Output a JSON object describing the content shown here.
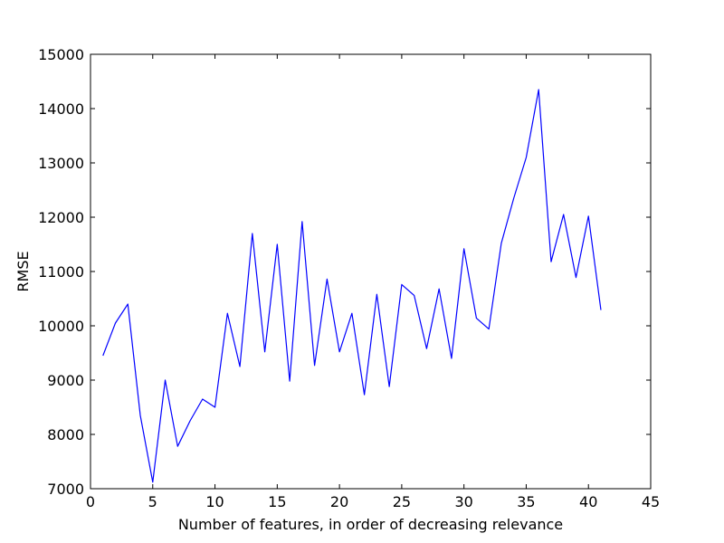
{
  "chart_data": {
    "type": "line",
    "title": "",
    "xlabel": "Number of features, in order of decreasing relevance",
    "ylabel": "RMSE",
    "xlim": [
      0,
      45
    ],
    "ylim": [
      7000,
      15000
    ],
    "xticks": [
      0,
      5,
      10,
      15,
      20,
      25,
      30,
      35,
      40,
      45
    ],
    "yticks": [
      7000,
      8000,
      9000,
      10000,
      11000,
      12000,
      13000,
      14000,
      15000
    ],
    "grid": false,
    "line_color": "#0000ff",
    "series": [
      {
        "x": [
          1,
          2,
          3,
          4,
          5,
          6,
          7,
          8,
          9,
          10,
          11,
          12,
          13,
          14,
          15,
          16,
          17,
          18,
          19,
          20,
          21,
          22,
          23,
          24,
          25,
          26,
          27,
          28,
          29,
          30,
          31,
          32,
          33,
          34,
          35,
          36,
          37,
          38,
          39,
          40,
          41
        ],
        "values": [
          9450,
          10050,
          10400,
          8350,
          7120,
          9000,
          7780,
          8250,
          8650,
          8500,
          10230,
          9250,
          11700,
          9520,
          11500,
          8980,
          11920,
          9270,
          10860,
          9520,
          10230,
          8730,
          10580,
          8880,
          10760,
          10560,
          9580,
          10680,
          9400,
          11420,
          10140,
          9940,
          11520,
          12350,
          13100,
          14350,
          11180,
          12050,
          10890,
          12020,
          10290
        ]
      }
    ]
  }
}
